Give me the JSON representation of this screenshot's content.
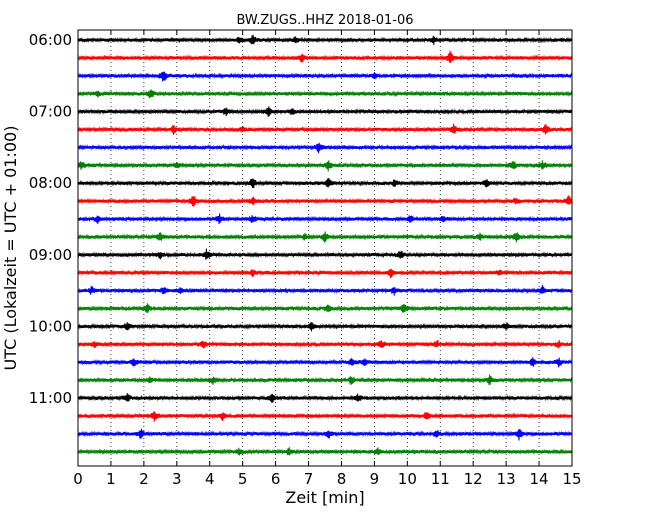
{
  "chart_data": {
    "type": "line",
    "title": "BW.ZUGS..HHZ 2018-01-06",
    "xlabel": "Zeit  [min]",
    "ylabel": "UTC (Lokalzeit = UTC + 01:00)",
    "xlim": [
      0,
      15
    ],
    "x_ticks": [
      "0",
      "1",
      "2",
      "3",
      "4",
      "5",
      "6",
      "7",
      "8",
      "9",
      "10",
      "11",
      "12",
      "13",
      "14",
      "15"
    ],
    "y_ticks": [
      "06:00",
      "07:00",
      "08:00",
      "09:00",
      "10:00",
      "11:00"
    ],
    "grid": "vertical dotted",
    "colors": [
      "#000000",
      "#ff0000",
      "#0000ff",
      "#008000"
    ],
    "series": [
      {
        "start": "06:00",
        "color": "#000000",
        "events": [
          [
            5.3,
            0.7
          ],
          [
            6.6,
            0.5
          ],
          [
            10.8,
            0.6
          ],
          [
            4.9,
            0.4
          ]
        ]
      },
      {
        "start": "06:15",
        "color": "#ff0000",
        "events": [
          [
            6.8,
            0.6
          ],
          [
            11.3,
            0.9
          ]
        ]
      },
      {
        "start": "06:30",
        "color": "#0000ff",
        "events": [
          [
            2.6,
            1.0
          ],
          [
            9.0,
            0.5
          ]
        ]
      },
      {
        "start": "06:45",
        "color": "#008000",
        "events": [
          [
            2.2,
            0.8
          ],
          [
            0.6,
            0.4
          ]
        ]
      },
      {
        "start": "07:00",
        "color": "#000000",
        "events": [
          [
            4.5,
            0.6
          ],
          [
            5.8,
            0.8
          ],
          [
            6.5,
            0.5
          ]
        ]
      },
      {
        "start": "07:15",
        "color": "#ff0000",
        "events": [
          [
            2.9,
            0.6
          ],
          [
            11.4,
            0.7
          ],
          [
            14.2,
            0.8
          ],
          [
            5.0,
            0.4
          ]
        ]
      },
      {
        "start": "07:30",
        "color": "#0000ff",
        "events": [
          [
            7.3,
            0.8
          ]
        ]
      },
      {
        "start": "07:45",
        "color": "#008000",
        "events": [
          [
            0.1,
            0.6
          ],
          [
            3.0,
            0.5
          ],
          [
            7.6,
            0.8
          ],
          [
            13.2,
            0.7
          ],
          [
            14.1,
            0.6
          ]
        ]
      },
      {
        "start": "08:00",
        "color": "#000000",
        "events": [
          [
            5.3,
            0.8
          ],
          [
            7.6,
            0.7
          ],
          [
            9.6,
            0.5
          ],
          [
            12.4,
            0.7
          ]
        ]
      },
      {
        "start": "08:15",
        "color": "#ff0000",
        "events": [
          [
            3.5,
            0.9
          ],
          [
            5.3,
            0.6
          ],
          [
            13.3,
            0.5
          ],
          [
            14.9,
            0.9
          ]
        ]
      },
      {
        "start": "08:30",
        "color": "#0000ff",
        "events": [
          [
            0.6,
            0.6
          ],
          [
            4.3,
            0.7
          ],
          [
            5.3,
            0.6
          ],
          [
            10.1,
            0.6
          ],
          [
            11.1,
            0.5
          ]
        ]
      },
      {
        "start": "08:45",
        "color": "#008000",
        "events": [
          [
            2.5,
            0.6
          ],
          [
            6.9,
            0.5
          ],
          [
            7.5,
            0.8
          ],
          [
            12.2,
            0.5
          ],
          [
            13.3,
            0.8
          ]
        ]
      },
      {
        "start": "09:00",
        "color": "#000000",
        "events": [
          [
            2.5,
            0.6
          ],
          [
            3.9,
            0.8
          ],
          [
            9.8,
            0.6
          ]
        ]
      },
      {
        "start": "09:15",
        "color": "#ff0000",
        "events": [
          [
            5.3,
            0.5
          ],
          [
            9.5,
            0.6
          ],
          [
            12.8,
            0.4
          ]
        ]
      },
      {
        "start": "09:30",
        "color": "#0000ff",
        "events": [
          [
            0.4,
            0.6
          ],
          [
            2.6,
            0.5
          ],
          [
            3.1,
            0.5
          ],
          [
            9.6,
            0.6
          ],
          [
            14.1,
            0.6
          ]
        ]
      },
      {
        "start": "09:45",
        "color": "#008000",
        "events": [
          [
            2.1,
            0.7
          ],
          [
            7.6,
            0.6
          ],
          [
            9.9,
            0.8
          ]
        ]
      },
      {
        "start": "10:00",
        "color": "#000000",
        "events": [
          [
            1.5,
            0.8
          ],
          [
            7.1,
            0.6
          ],
          [
            13.0,
            0.6
          ]
        ]
      },
      {
        "start": "10:15",
        "color": "#ff0000",
        "events": [
          [
            0.5,
            0.6
          ],
          [
            3.8,
            0.6
          ],
          [
            9.2,
            0.7
          ],
          [
            10.9,
            0.6
          ],
          [
            14.6,
            0.5
          ]
        ]
      },
      {
        "start": "10:30",
        "color": "#0000ff",
        "events": [
          [
            1.7,
            0.6
          ],
          [
            8.3,
            0.6
          ],
          [
            8.7,
            0.5
          ],
          [
            13.8,
            0.6
          ],
          [
            14.6,
            0.6
          ]
        ]
      },
      {
        "start": "10:45",
        "color": "#008000",
        "events": [
          [
            2.2,
            0.5
          ],
          [
            4.1,
            0.5
          ],
          [
            8.3,
            0.6
          ],
          [
            12.5,
            0.6
          ]
        ]
      },
      {
        "start": "11:00",
        "color": "#000000",
        "events": [
          [
            1.5,
            0.6
          ],
          [
            5.9,
            0.7
          ],
          [
            8.5,
            0.6
          ]
        ]
      },
      {
        "start": "11:15",
        "color": "#ff0000",
        "events": [
          [
            2.3,
            0.8
          ],
          [
            4.4,
            0.6
          ],
          [
            10.6,
            0.6
          ]
        ]
      },
      {
        "start": "11:30",
        "color": "#0000ff",
        "events": [
          [
            1.9,
            0.8
          ],
          [
            7.6,
            0.6
          ],
          [
            10.9,
            0.6
          ],
          [
            13.4,
            0.8
          ]
        ]
      },
      {
        "start": "11:45",
        "color": "#008000",
        "events": [
          [
            4.9,
            0.5
          ],
          [
            6.4,
            0.5
          ],
          [
            9.1,
            0.5
          ]
        ]
      }
    ]
  }
}
